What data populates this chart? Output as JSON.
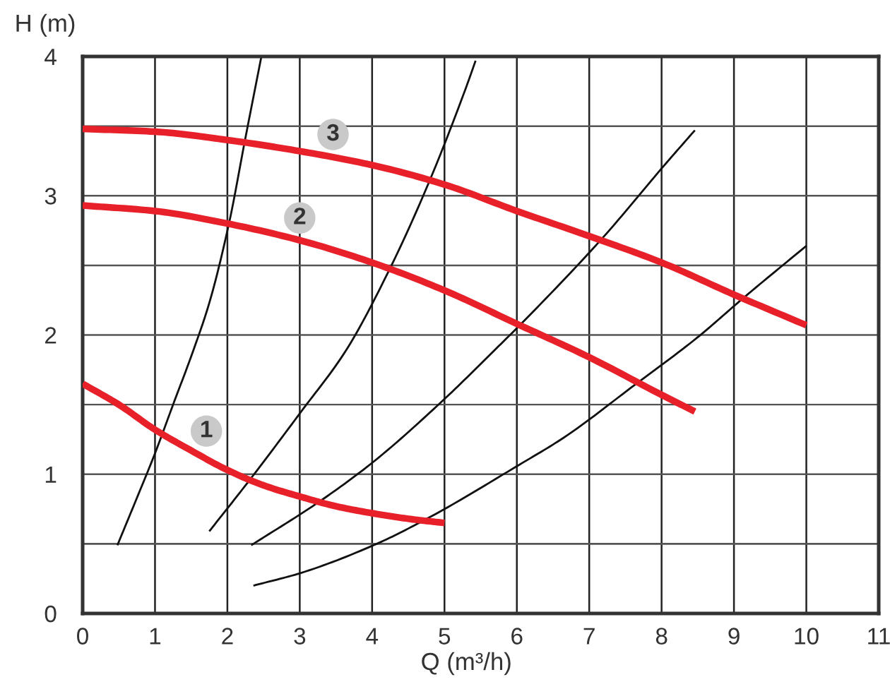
{
  "chart_data": {
    "type": "line",
    "xlabel": "Q (m³/h)",
    "ylabel": "H (m)",
    "xlim": [
      0,
      11
    ],
    "ylim": [
      0,
      4
    ],
    "xticks": [
      0,
      1,
      2,
      3,
      4,
      5,
      6,
      7,
      8,
      9,
      10,
      11
    ],
    "yticks": [
      0,
      {
        "value": 0.5,
        "label": null
      },
      1,
      {
        "value": 1.5,
        "label": null
      },
      2,
      {
        "value": 2.5,
        "label": null
      },
      3,
      {
        "value": 3.5,
        "label": null
      },
      4
    ],
    "grid": true,
    "line_style": "solid",
    "series": [
      {
        "color": "#e8202a",
        "x": [
          0,
          0.5,
          1,
          1.5,
          2,
          2.5,
          3,
          3.5,
          4,
          4.5,
          5
        ],
        "values": [
          1.65,
          1.5,
          1.32,
          1.17,
          1.03,
          0.92,
          0.84,
          0.77,
          0.72,
          0.68,
          0.65
        ]
      },
      {
        "color": "#e8202a",
        "x": [
          0,
          1,
          2,
          3,
          4,
          5,
          6,
          7,
          8,
          8.46
        ],
        "values": [
          2.93,
          2.89,
          2.8,
          2.68,
          2.52,
          2.32,
          2.08,
          1.84,
          1.57,
          1.45
        ]
      },
      {
        "color": "#e8202a",
        "x": [
          0,
          1,
          2,
          3,
          4,
          5,
          6,
          7,
          8,
          9,
          10
        ],
        "values": [
          3.48,
          3.46,
          3.4,
          3.32,
          3.22,
          3.08,
          2.89,
          2.71,
          2.52,
          2.29,
          2.07
        ]
      },
      {
        "color": "#111111",
        "x": [
          0.48,
          0.75,
          1.0,
          1.25,
          1.53,
          1.75,
          2.03,
          2.24,
          2.47
        ],
        "values": [
          0.49,
          0.83,
          1.15,
          1.5,
          1.89,
          2.23,
          2.82,
          3.39,
          4.0
        ]
      },
      {
        "color": "#111111",
        "x": [
          1.75,
          2.31,
          3.02,
          3.64,
          4.23,
          4.78,
          5.3,
          5.43
        ],
        "values": [
          0.59,
          0.96,
          1.45,
          1.89,
          2.46,
          3.09,
          3.78,
          3.97
        ]
      },
      {
        "color": "#111111",
        "x": [
          2.33,
          3.29,
          4.02,
          5.02,
          5.69,
          6.04,
          7.19,
          8.04,
          8.46
        ],
        "values": [
          0.49,
          0.81,
          1.09,
          1.55,
          1.89,
          2.07,
          2.7,
          3.22,
          3.47
        ]
      },
      {
        "color": "#111111",
        "x": [
          2.36,
          3.01,
          4.02,
          4.72,
          6.04,
          6.64,
          7.65,
          8.49,
          9.14,
          10.0
        ],
        "values": [
          0.2,
          0.29,
          0.49,
          0.67,
          1.07,
          1.26,
          1.65,
          1.98,
          2.27,
          2.64
        ]
      }
    ],
    "annotations": [
      {
        "text": "1",
        "x": 1.71,
        "y": 1.31
      },
      {
        "text": "2",
        "x": 3.0,
        "y": 2.84
      },
      {
        "text": "3",
        "x": 3.46,
        "y": 3.44
      }
    ]
  }
}
